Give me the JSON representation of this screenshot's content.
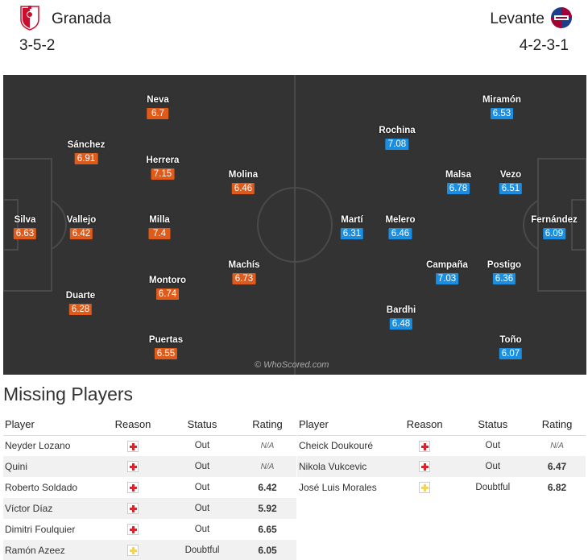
{
  "header": {
    "home_team": "Granada",
    "away_team": "Levante",
    "home_formation": "3-5-2",
    "away_formation": "4-2-3-1",
    "home_color": "#e05a1a",
    "away_color": "#1a8ee0"
  },
  "pitch": {
    "watermark": "© WhoScored.com",
    "home_players": [
      {
        "name": "Silva",
        "rating": "6.63"
      },
      {
        "name": "Vallejo",
        "rating": "6.42"
      },
      {
        "name": "Sánchez",
        "rating": "6.91"
      },
      {
        "name": "Duarte",
        "rating": "6.28"
      },
      {
        "name": "Neva",
        "rating": "6.7"
      },
      {
        "name": "Herrera",
        "rating": "7.15"
      },
      {
        "name": "Milla",
        "rating": "7.4"
      },
      {
        "name": "Montoro",
        "rating": "6.74"
      },
      {
        "name": "Puertas",
        "rating": "6.55"
      },
      {
        "name": "Molina",
        "rating": "6.46"
      },
      {
        "name": "Machís",
        "rating": "6.73"
      }
    ],
    "away_players": [
      {
        "name": "Fernández",
        "rating": "6.09"
      },
      {
        "name": "Miramón",
        "rating": "6.53"
      },
      {
        "name": "Vezo",
        "rating": "6.51"
      },
      {
        "name": "Postigo",
        "rating": "6.36"
      },
      {
        "name": "Toño",
        "rating": "6.07"
      },
      {
        "name": "Malsa",
        "rating": "6.78"
      },
      {
        "name": "Campaña",
        "rating": "7.03"
      },
      {
        "name": "Rochina",
        "rating": "7.08"
      },
      {
        "name": "Melero",
        "rating": "6.46"
      },
      {
        "name": "Bardhi",
        "rating": "6.48"
      },
      {
        "name": "Martí",
        "rating": "6.31"
      }
    ]
  },
  "missing": {
    "title": "Missing Players",
    "columns": {
      "player": "Player",
      "reason": "Reason",
      "status": "Status",
      "rating": "Rating"
    },
    "home": [
      {
        "player": "Neyder Lozano",
        "reason": "injury-icon",
        "status": "Out",
        "rating": "N/A"
      },
      {
        "player": "Quini",
        "reason": "injury-icon",
        "status": "Out",
        "rating": "N/A"
      },
      {
        "player": "Roberto Soldado",
        "reason": "injury-icon",
        "status": "Out",
        "rating": "6.42"
      },
      {
        "player": "Víctor Díaz",
        "reason": "injury-icon",
        "status": "Out",
        "rating": "5.92"
      },
      {
        "player": "Dimitri Foulquier",
        "reason": "injury-icon",
        "status": "Out",
        "rating": "6.65"
      },
      {
        "player": "Ramón Azeez",
        "reason": "doubt-icon",
        "status": "Doubtful",
        "rating": "6.05"
      }
    ],
    "away": [
      {
        "player": "Cheick Doukouré",
        "reason": "injury-icon",
        "status": "Out",
        "rating": "N/A"
      },
      {
        "player": "Nikola Vukcevic",
        "reason": "injury-icon",
        "status": "Out",
        "rating": "6.47"
      },
      {
        "player": "José Luis Morales",
        "reason": "doubt-icon",
        "status": "Doubtful",
        "rating": "6.82"
      }
    ]
  }
}
